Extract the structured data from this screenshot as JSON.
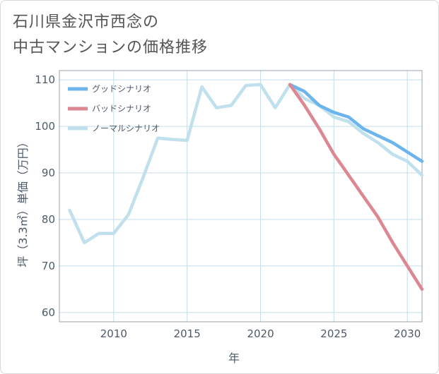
{
  "page": {
    "title_line1": "石川県金沢市西念の",
    "title_line2": "中古マンションの価格推移"
  },
  "chart_data": {
    "type": "line",
    "xlabel": "年",
    "ylabel": "坪（3.3㎡）単価（万円）",
    "xlim": [
      2006.3,
      2031
    ],
    "ylim": [
      58,
      112
    ],
    "x_ticks": [
      2010,
      2015,
      2020,
      2025,
      2030
    ],
    "y_ticks": [
      60,
      70,
      80,
      90,
      100,
      110
    ],
    "grid": true,
    "legend_position": "top-left",
    "series": [
      {
        "name": "グッドシナリオ",
        "color": "#6cb4ec",
        "x": [
          2022,
          2023,
          2024,
          2025,
          2026,
          2027,
          2028,
          2029,
          2030,
          2031
        ],
        "y": [
          109,
          107.5,
          104.5,
          103,
          102,
          99.5,
          98,
          96.5,
          94.5,
          92.5
        ]
      },
      {
        "name": "バッドシナリオ",
        "color": "#dc8791",
        "x": [
          2022,
          2023,
          2024,
          2025,
          2026,
          2027,
          2028,
          2029,
          2030,
          2031
        ],
        "y": [
          109,
          104.5,
          99.5,
          94,
          89.5,
          85,
          80.5,
          75,
          70,
          65
        ]
      },
      {
        "name": "ノーマルシナリオ",
        "color": "#bfe0ec",
        "x": [
          2007,
          2008,
          2009,
          2010,
          2011,
          2012,
          2013,
          2014,
          2015,
          2016,
          2017,
          2018,
          2019,
          2020,
          2021,
          2022,
          2023,
          2024,
          2025,
          2026,
          2027,
          2028,
          2029,
          2030,
          2031
        ],
        "y": [
          82,
          75,
          77,
          77,
          81,
          89,
          97.5,
          97.2,
          97,
          108.5,
          104,
          104.5,
          108.8,
          109,
          104,
          109,
          106,
          104.5,
          102,
          101,
          98.5,
          96.5,
          94,
          92.5,
          89.5
        ]
      }
    ]
  }
}
